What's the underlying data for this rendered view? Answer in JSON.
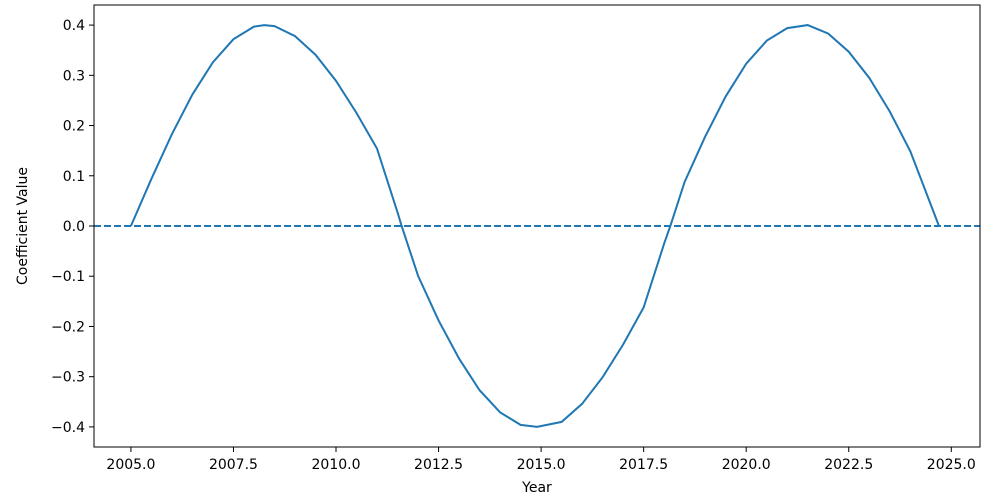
{
  "chart_data": {
    "type": "line",
    "title": "",
    "xlabel": "Year",
    "ylabel": "Coefficient Value",
    "xlim": [
      2004.1,
      2025.7
    ],
    "ylim": [
      -0.44,
      0.44
    ],
    "grid": false,
    "legend": "none",
    "x_ticks": [
      2005.0,
      2007.5,
      2010.0,
      2012.5,
      2015.0,
      2017.5,
      2020.0,
      2022.5,
      2025.0
    ],
    "x_tick_labels": [
      "2005.0",
      "2007.5",
      "2010.0",
      "2012.5",
      "2015.0",
      "2017.5",
      "2020.0",
      "2022.5",
      "2025.0"
    ],
    "y_ticks": [
      -0.4,
      -0.3,
      -0.2,
      -0.1,
      0.0,
      0.1,
      0.2,
      0.3,
      0.4
    ],
    "y_tick_labels": [
      "−0.4",
      "−0.3",
      "−0.2",
      "−0.1",
      "0.0",
      "0.1",
      "0.2",
      "0.3",
      "0.4"
    ],
    "series": [
      {
        "style": "solid",
        "color": "#1f77b4",
        "x": [
          2005.0,
          2005.5,
          2006.0,
          2006.5,
          2007.0,
          2007.5,
          2008.0,
          2008.25,
          2008.5,
          2009.0,
          2009.5,
          2010.0,
          2010.5,
          2011.0,
          2011.5,
          2011.6,
          2012.0,
          2012.5,
          2013.0,
          2013.5,
          2014.0,
          2014.5,
          2014.9,
          2015.5,
          2016.0,
          2016.5,
          2017.0,
          2017.5,
          2018.0,
          2018.15,
          2018.5,
          2019.0,
          2019.5,
          2020.0,
          2020.5,
          2021.0,
          2021.5,
          2022.0,
          2022.5,
          2023.0,
          2023.5,
          2024.0,
          2024.7
        ],
        "y": [
          0.0,
          0.094,
          0.183,
          0.262,
          0.326,
          0.372,
          0.397,
          0.4,
          0.398,
          0.378,
          0.341,
          0.289,
          0.225,
          0.154,
          0.027,
          0.0,
          -0.099,
          -0.188,
          -0.264,
          -0.327,
          -0.371,
          -0.396,
          -0.4,
          -0.39,
          -0.354,
          -0.301,
          -0.236,
          -0.162,
          -0.035,
          0.0,
          0.088,
          0.178,
          0.258,
          0.323,
          0.369,
          0.394,
          0.4,
          0.383,
          0.347,
          0.295,
          0.228,
          0.149,
          0.0
        ]
      },
      {
        "style": "dashed",
        "color": "#1f77b4",
        "x": [
          2004.1,
          2025.7
        ],
        "y": [
          0.0,
          0.0
        ]
      }
    ]
  }
}
